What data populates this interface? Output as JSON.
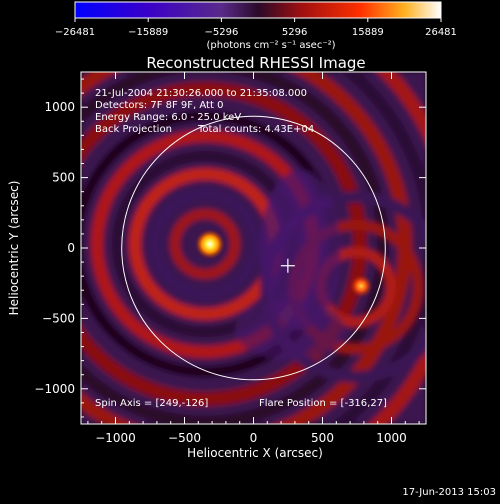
{
  "chart_data": {
    "type": "heatmap",
    "title": "Reconstructed RHESSI Image",
    "xlabel": "Heliocentric X (arcsec)",
    "ylabel": "Heliocentric Y (arcsec)",
    "xlim": [
      -1250,
      1250
    ],
    "ylim": [
      -1250,
      1250
    ],
    "x_ticks": [
      -1000,
      -500,
      0,
      500,
      1000
    ],
    "y_ticks": [
      -1000,
      -500,
      0,
      500,
      1000
    ],
    "x_tick_labels": [
      "−1000",
      "−500",
      "0",
      "500",
      "1000"
    ],
    "y_tick_labels": [
      "−1000",
      "−500",
      "0",
      "500",
      "1000"
    ],
    "colorbar": {
      "min": -26481,
      "max": 26481,
      "ticks": [
        -26481,
        -15889,
        -5296,
        5296,
        15889,
        26481
      ],
      "tick_labels": [
        "−26481",
        "−15889",
        "−5296",
        "5296",
        "15889",
        "26481"
      ],
      "units": "(photons cm⁻² s⁻¹ asec⁻²)"
    },
    "annotations": {
      "time": "21-Jul-2004 21:30:26.000 to 21:35:08.000",
      "detectors": "Detectors: 7F 8F 9F, Att 0",
      "energy": "Energy Range: 6.0 - 25.0 keV",
      "method": "Back Projection",
      "counts": "Total counts: 4.43E+04",
      "spin_axis": "Spin Axis = [249,-126]",
      "flare_position": "Flare Position = [-316,27]"
    },
    "solar_disk": {
      "center": [
        0,
        0
      ],
      "radius_arcsec": 955
    },
    "spin_axis_marker": [
      249,
      -126
    ],
    "sources": [
      {
        "x": -316,
        "y": 27,
        "peak": 26481
      },
      {
        "x": 780,
        "y": -270,
        "peak": 16000
      }
    ],
    "timestamp": "17-Jun-2013 15:03"
  }
}
